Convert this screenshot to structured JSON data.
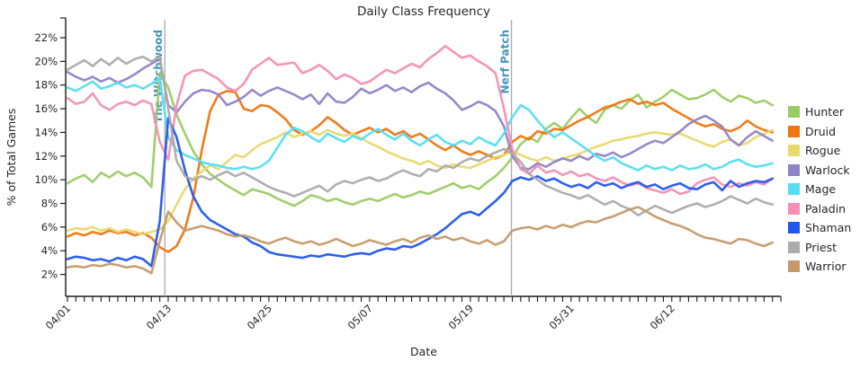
{
  "chart_data": {
    "type": "line",
    "title": "Daily Class Frequency",
    "xlabel": "Date",
    "ylabel": "% of Total Games",
    "x_start": "04/01",
    "x_end": "06/24",
    "x_frequency": "daily",
    "num_days": 85,
    "x_tick_labels": [
      "04/01",
      "04/13",
      "04/25",
      "05/07",
      "05/19",
      "05/31",
      "06/12"
    ],
    "x_tick_indices": [
      0,
      12,
      24,
      36,
      48,
      60,
      72
    ],
    "y_tick_labels": [
      "2%",
      "4%",
      "6%",
      "8%",
      "10%",
      "12%",
      "14%",
      "16%",
      "18%",
      "20%",
      "22%"
    ],
    "y_tick_values": [
      2,
      4,
      6,
      8,
      10,
      12,
      14,
      16,
      18,
      20,
      22
    ],
    "ylim": [
      0,
      23.6
    ],
    "grid": false,
    "legend_position": "right",
    "colors": {
      "axis_text": "#262626",
      "axis_line": "#1a1a1a",
      "annotation_text": "#4593BD",
      "annotation_line": "#ababab",
      "background": "#ffffff"
    },
    "annotations": [
      {
        "label": "The Witchwood",
        "date": "04/12",
        "day_index": 11.6
      },
      {
        "label": "Nerf Patch",
        "date": "05/23",
        "day_index": 52.9
      }
    ],
    "series": [
      {
        "name": "Hunter",
        "color": "#9CCB65",
        "values": [
          9.7,
          10.1,
          10.4,
          9.8,
          10.6,
          10.2,
          10.7,
          10.3,
          10.6,
          10.2,
          9.4,
          19.0,
          17.8,
          15.5,
          13.9,
          12.4,
          11.3,
          10.5,
          10.0,
          9.5,
          9.1,
          8.7,
          9.2,
          9.0,
          8.8,
          8.4,
          8.1,
          7.8,
          8.2,
          8.7,
          8.5,
          8.2,
          8.4,
          8.1,
          7.9,
          8.2,
          8.4,
          8.2,
          8.5,
          8.8,
          8.5,
          8.7,
          9.0,
          8.8,
          9.1,
          9.4,
          9.7,
          9.3,
          9.5,
          9.2,
          9.8,
          10.3,
          11.0,
          11.9,
          13.0,
          13.6,
          13.2,
          14.3,
          14.8,
          14.3,
          15.2,
          16.0,
          15.3,
          14.8,
          15.9,
          16.3,
          16.0,
          16.7,
          17.2,
          16.1,
          16.6,
          17.0,
          17.6,
          17.2,
          16.8,
          16.9,
          17.2,
          17.6,
          17.0,
          16.6,
          17.1,
          16.9,
          16.5,
          16.7,
          16.3
        ]
      },
      {
        "name": "Druid",
        "color": "#F0750E",
        "values": [
          5.2,
          5.5,
          5.3,
          5.6,
          5.4,
          5.7,
          5.5,
          5.6,
          5.3,
          5.5,
          5.1,
          4.3,
          3.9,
          4.4,
          5.8,
          8.5,
          12.5,
          15.8,
          17.2,
          17.5,
          17.4,
          16.0,
          15.8,
          16.3,
          16.2,
          15.7,
          15.1,
          14.2,
          13.8,
          14.1,
          14.6,
          15.3,
          14.8,
          14.2,
          13.8,
          14.1,
          14.4,
          14.0,
          14.3,
          13.8,
          14.1,
          13.6,
          13.9,
          13.4,
          12.9,
          12.5,
          12.9,
          12.4,
          12.1,
          12.4,
          12.1,
          11.8,
          12.1,
          13.2,
          13.7,
          13.4,
          14.1,
          13.9,
          14.3,
          14.2,
          14.6,
          15.0,
          15.3,
          15.7,
          16.1,
          16.3,
          16.6,
          16.8,
          16.4,
          16.6,
          16.3,
          16.5,
          16.0,
          15.6,
          15.2,
          14.8,
          14.5,
          14.7,
          14.3,
          14.1,
          14.4,
          15.0,
          14.5,
          14.2,
          14.0
        ]
      },
      {
        "name": "Rogue",
        "color": "#E8D96B",
        "values": [
          5.7,
          5.9,
          5.8,
          6.0,
          5.7,
          5.9,
          5.6,
          5.8,
          5.6,
          5.4,
          5.6,
          5.8,
          6.5,
          7.9,
          9.2,
          10.1,
          10.7,
          11.2,
          10.9,
          11.5,
          12.1,
          11.9,
          12.5,
          13.0,
          13.3,
          13.6,
          14.0,
          13.6,
          13.9,
          14.1,
          13.8,
          14.2,
          13.9,
          13.7,
          13.9,
          13.5,
          13.1,
          12.8,
          12.4,
          12.1,
          11.8,
          11.6,
          11.3,
          11.6,
          11.2,
          11.0,
          11.3,
          11.1,
          11.0,
          11.3,
          11.6,
          11.9,
          12.1,
          12.4,
          12.1,
          11.8,
          11.6,
          11.9,
          11.6,
          11.8,
          12.0,
          12.2,
          12.5,
          12.8,
          13.0,
          13.3,
          13.4,
          13.6,
          13.7,
          13.9,
          14.0,
          13.9,
          13.8,
          13.9,
          13.6,
          13.3,
          13.0,
          12.8,
          13.2,
          13.4,
          12.9,
          13.1,
          13.6,
          13.9,
          14.2
        ]
      },
      {
        "name": "Warlock",
        "color": "#9183C8",
        "values": [
          19.1,
          18.7,
          18.4,
          18.7,
          18.3,
          18.6,
          18.2,
          18.5,
          18.9,
          19.4,
          19.8,
          20.2,
          16.3,
          15.7,
          16.6,
          17.3,
          17.6,
          17.5,
          17.2,
          16.3,
          16.6,
          17.0,
          17.6,
          17.1,
          17.5,
          17.8,
          17.5,
          17.2,
          16.8,
          17.2,
          16.4,
          17.3,
          16.6,
          16.5,
          17.0,
          17.7,
          17.3,
          17.6,
          18.0,
          17.5,
          17.8,
          17.4,
          17.9,
          18.2,
          17.7,
          17.3,
          16.7,
          15.9,
          16.2,
          16.6,
          16.3,
          15.8,
          14.5,
          12.0,
          11.0,
          10.9,
          11.4,
          11.1,
          11.5,
          11.8,
          11.6,
          12.0,
          11.7,
          12.2,
          12.0,
          12.3,
          11.9,
          12.2,
          12.6,
          13.0,
          13.3,
          13.1,
          13.6,
          14.1,
          14.7,
          15.1,
          15.4,
          15.0,
          14.5,
          13.4,
          12.9,
          13.6,
          14.1,
          13.7,
          13.3
        ]
      },
      {
        "name": "Mage",
        "color": "#55DDF2",
        "values": [
          17.8,
          17.5,
          17.9,
          18.3,
          17.7,
          17.9,
          18.2,
          17.8,
          18.0,
          17.7,
          18.1,
          18.6,
          13.6,
          12.5,
          12.1,
          11.8,
          11.5,
          11.3,
          11.2,
          11.0,
          10.9,
          11.1,
          10.9,
          11.1,
          11.6,
          12.7,
          13.8,
          14.4,
          14.1,
          13.6,
          13.2,
          13.9,
          13.5,
          13.2,
          13.7,
          13.4,
          13.9,
          14.3,
          13.8,
          13.4,
          13.9,
          13.3,
          12.9,
          13.4,
          13.8,
          13.2,
          12.9,
          13.3,
          13.0,
          13.6,
          13.2,
          12.9,
          13.9,
          15.3,
          16.3,
          15.9,
          15.0,
          14.2,
          13.6,
          14.0,
          13.5,
          13.0,
          12.5,
          12.0,
          11.6,
          11.9,
          11.4,
          11.1,
          10.8,
          11.2,
          10.9,
          11.1,
          10.8,
          11.2,
          10.9,
          11.0,
          11.3,
          10.9,
          11.1,
          11.5,
          11.7,
          11.3,
          11.1,
          11.2,
          11.4
        ]
      },
      {
        "name": "Paladin",
        "color": "#F48FB4",
        "values": [
          16.9,
          16.4,
          16.6,
          17.3,
          16.3,
          15.9,
          16.4,
          16.6,
          16.3,
          16.7,
          16.4,
          13.2,
          11.7,
          16.3,
          18.8,
          19.2,
          19.3,
          18.9,
          18.5,
          17.8,
          17.5,
          18.1,
          19.3,
          19.8,
          20.3,
          19.7,
          19.8,
          19.9,
          19.0,
          19.3,
          19.7,
          19.2,
          18.5,
          18.9,
          18.6,
          18.1,
          18.3,
          18.8,
          19.3,
          19.0,
          19.4,
          19.8,
          19.5,
          20.2,
          20.7,
          21.3,
          20.8,
          20.3,
          20.5,
          20.0,
          19.6,
          19.0,
          16.0,
          12.6,
          10.9,
          10.5,
          11.2,
          10.6,
          10.8,
          10.4,
          10.7,
          10.3,
          10.5,
          10.1,
          9.9,
          10.2,
          9.8,
          9.5,
          9.7,
          9.3,
          9.1,
          8.9,
          9.2,
          8.8,
          9.0,
          9.7,
          10.0,
          10.2,
          9.6,
          9.4,
          9.7,
          9.5,
          9.8,
          9.6,
          10.1
        ]
      },
      {
        "name": "Shaman",
        "color": "#2357EB",
        "values": [
          3.3,
          3.5,
          3.4,
          3.2,
          3.3,
          3.1,
          3.4,
          3.2,
          3.5,
          3.3,
          2.7,
          6.5,
          15.2,
          13.6,
          10.8,
          8.6,
          7.3,
          6.6,
          6.2,
          5.8,
          5.4,
          5.2,
          4.7,
          4.4,
          3.9,
          3.7,
          3.6,
          3.5,
          3.4,
          3.6,
          3.5,
          3.7,
          3.6,
          3.5,
          3.7,
          3.8,
          3.7,
          4.0,
          4.2,
          4.1,
          4.4,
          4.3,
          4.6,
          5.0,
          5.4,
          5.9,
          6.5,
          7.1,
          7.3,
          7.0,
          7.6,
          8.2,
          8.9,
          9.9,
          10.2,
          10.0,
          10.3,
          9.9,
          10.1,
          9.7,
          9.4,
          9.6,
          9.3,
          9.8,
          9.5,
          9.7,
          9.3,
          9.6,
          9.8,
          9.4,
          9.6,
          9.2,
          9.5,
          9.7,
          9.3,
          9.2,
          9.6,
          9.8,
          9.1,
          9.9,
          9.4,
          9.7,
          9.9,
          9.8,
          10.1
        ]
      },
      {
        "name": "Priest",
        "color": "#ABABAB",
        "values": [
          19.3,
          19.7,
          20.1,
          19.6,
          20.2,
          19.7,
          20.3,
          19.8,
          20.2,
          20.4,
          20.0,
          20.4,
          16.0,
          11.6,
          10.3,
          10.0,
          10.3,
          10.0,
          10.4,
          10.7,
          10.3,
          10.6,
          10.2,
          9.8,
          9.4,
          9.1,
          8.9,
          8.6,
          8.9,
          9.2,
          9.5,
          9.0,
          9.6,
          9.9,
          9.7,
          10.0,
          10.2,
          9.9,
          10.1,
          10.5,
          10.8,
          10.5,
          10.3,
          10.9,
          10.7,
          11.2,
          11.0,
          11.5,
          11.8,
          11.6,
          12.0,
          12.3,
          12.6,
          12.2,
          11.5,
          10.5,
          10.0,
          9.5,
          9.2,
          8.9,
          8.7,
          8.4,
          8.7,
          8.3,
          7.9,
          8.2,
          7.8,
          7.5,
          7.0,
          7.4,
          7.8,
          7.5,
          7.2,
          7.5,
          7.8,
          8.0,
          7.7,
          7.9,
          8.2,
          8.6,
          8.3,
          8.0,
          8.4,
          8.1,
          7.9
        ]
      },
      {
        "name": "Warrior",
        "color": "#C49A6B",
        "values": [
          2.6,
          2.7,
          2.6,
          2.8,
          2.7,
          2.9,
          2.8,
          2.6,
          2.7,
          2.5,
          2.1,
          4.8,
          7.3,
          6.4,
          5.7,
          5.9,
          6.1,
          5.9,
          5.7,
          5.4,
          5.2,
          5.3,
          5.1,
          4.8,
          4.6,
          4.9,
          5.1,
          4.8,
          4.6,
          4.8,
          4.5,
          4.7,
          5.0,
          4.7,
          4.4,
          4.6,
          4.9,
          4.7,
          4.5,
          4.8,
          5.0,
          4.7,
          5.1,
          5.3,
          5.0,
          5.2,
          4.9,
          5.1,
          4.8,
          4.6,
          4.9,
          4.5,
          4.8,
          5.7,
          5.9,
          6.0,
          5.8,
          6.1,
          5.9,
          6.2,
          6.0,
          6.3,
          6.5,
          6.4,
          6.7,
          6.9,
          7.2,
          7.5,
          7.7,
          7.3,
          6.9,
          6.6,
          6.3,
          6.1,
          5.8,
          5.4,
          5.1,
          5.0,
          4.8,
          4.6,
          5.0,
          4.9,
          4.6,
          4.4,
          4.7
        ]
      }
    ]
  }
}
